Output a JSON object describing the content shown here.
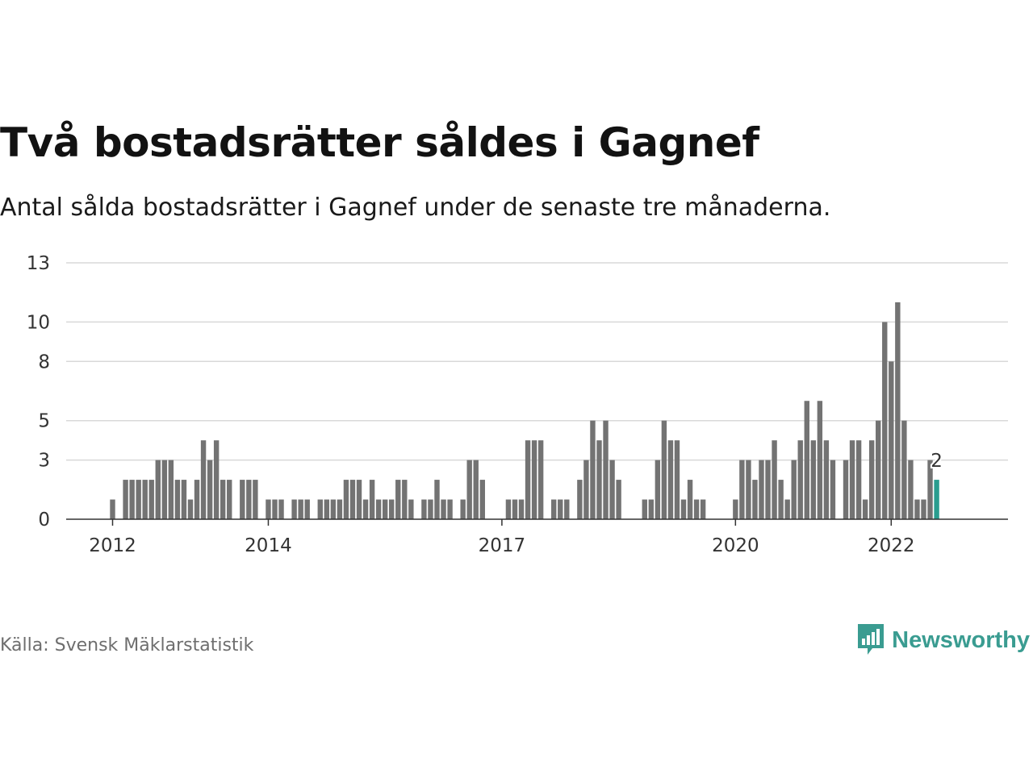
{
  "header": {
    "title": "Två bostadsrätter såldes i Gagnef",
    "subtitle": "Antal sålda bostadsrätter i Gagnef under de senaste tre månaderna."
  },
  "footer": {
    "source": "Källa: Svensk Mäklarstatistik",
    "brand": "Newsworthy",
    "brand_icon": "bar-chart-speech-bubble-icon"
  },
  "colors": {
    "bar": "#737373",
    "highlight": "#2a9d8f",
    "grid": "#d9d9d9",
    "brand": "#3a9c91"
  },
  "chart_data": {
    "type": "bar",
    "grid": true,
    "ylim": [
      0,
      13
    ],
    "y_ticks": [
      "0",
      "3",
      "5",
      "8",
      "10",
      "13"
    ],
    "y_tick_values": [
      0,
      3,
      5,
      8,
      10,
      13
    ],
    "x_ticks": [
      "2012",
      "2014",
      "2017",
      "2020",
      "2022"
    ],
    "x_tick_indices": [
      0,
      24,
      60,
      96,
      120
    ],
    "first_index": 0,
    "values": [
      1,
      0,
      2,
      2,
      2,
      2,
      2,
      3,
      3,
      3,
      2,
      2,
      1,
      2,
      4,
      3,
      4,
      2,
      2,
      0,
      2,
      2,
      2,
      0,
      1,
      1,
      1,
      0,
      1,
      1,
      1,
      0,
      1,
      1,
      1,
      1,
      2,
      2,
      2,
      1,
      2,
      1,
      1,
      1,
      2,
      2,
      1,
      0,
      1,
      1,
      2,
      1,
      1,
      0,
      1,
      3,
      3,
      2,
      0,
      0,
      0,
      1,
      1,
      1,
      4,
      4,
      4,
      0,
      1,
      1,
      1,
      0,
      2,
      3,
      5,
      4,
      5,
      3,
      2,
      0,
      0,
      0,
      1,
      1,
      3,
      5,
      4,
      4,
      1,
      2,
      1,
      1,
      0,
      0,
      0,
      0,
      1,
      3,
      3,
      2,
      3,
      3,
      4,
      2,
      1,
      3,
      4,
      6,
      4,
      6,
      4,
      3,
      0,
      3,
      4,
      4,
      1,
      4,
      5,
      10,
      8,
      11,
      5,
      3,
      1,
      1,
      3,
      2
    ],
    "highlight_label": "2"
  }
}
